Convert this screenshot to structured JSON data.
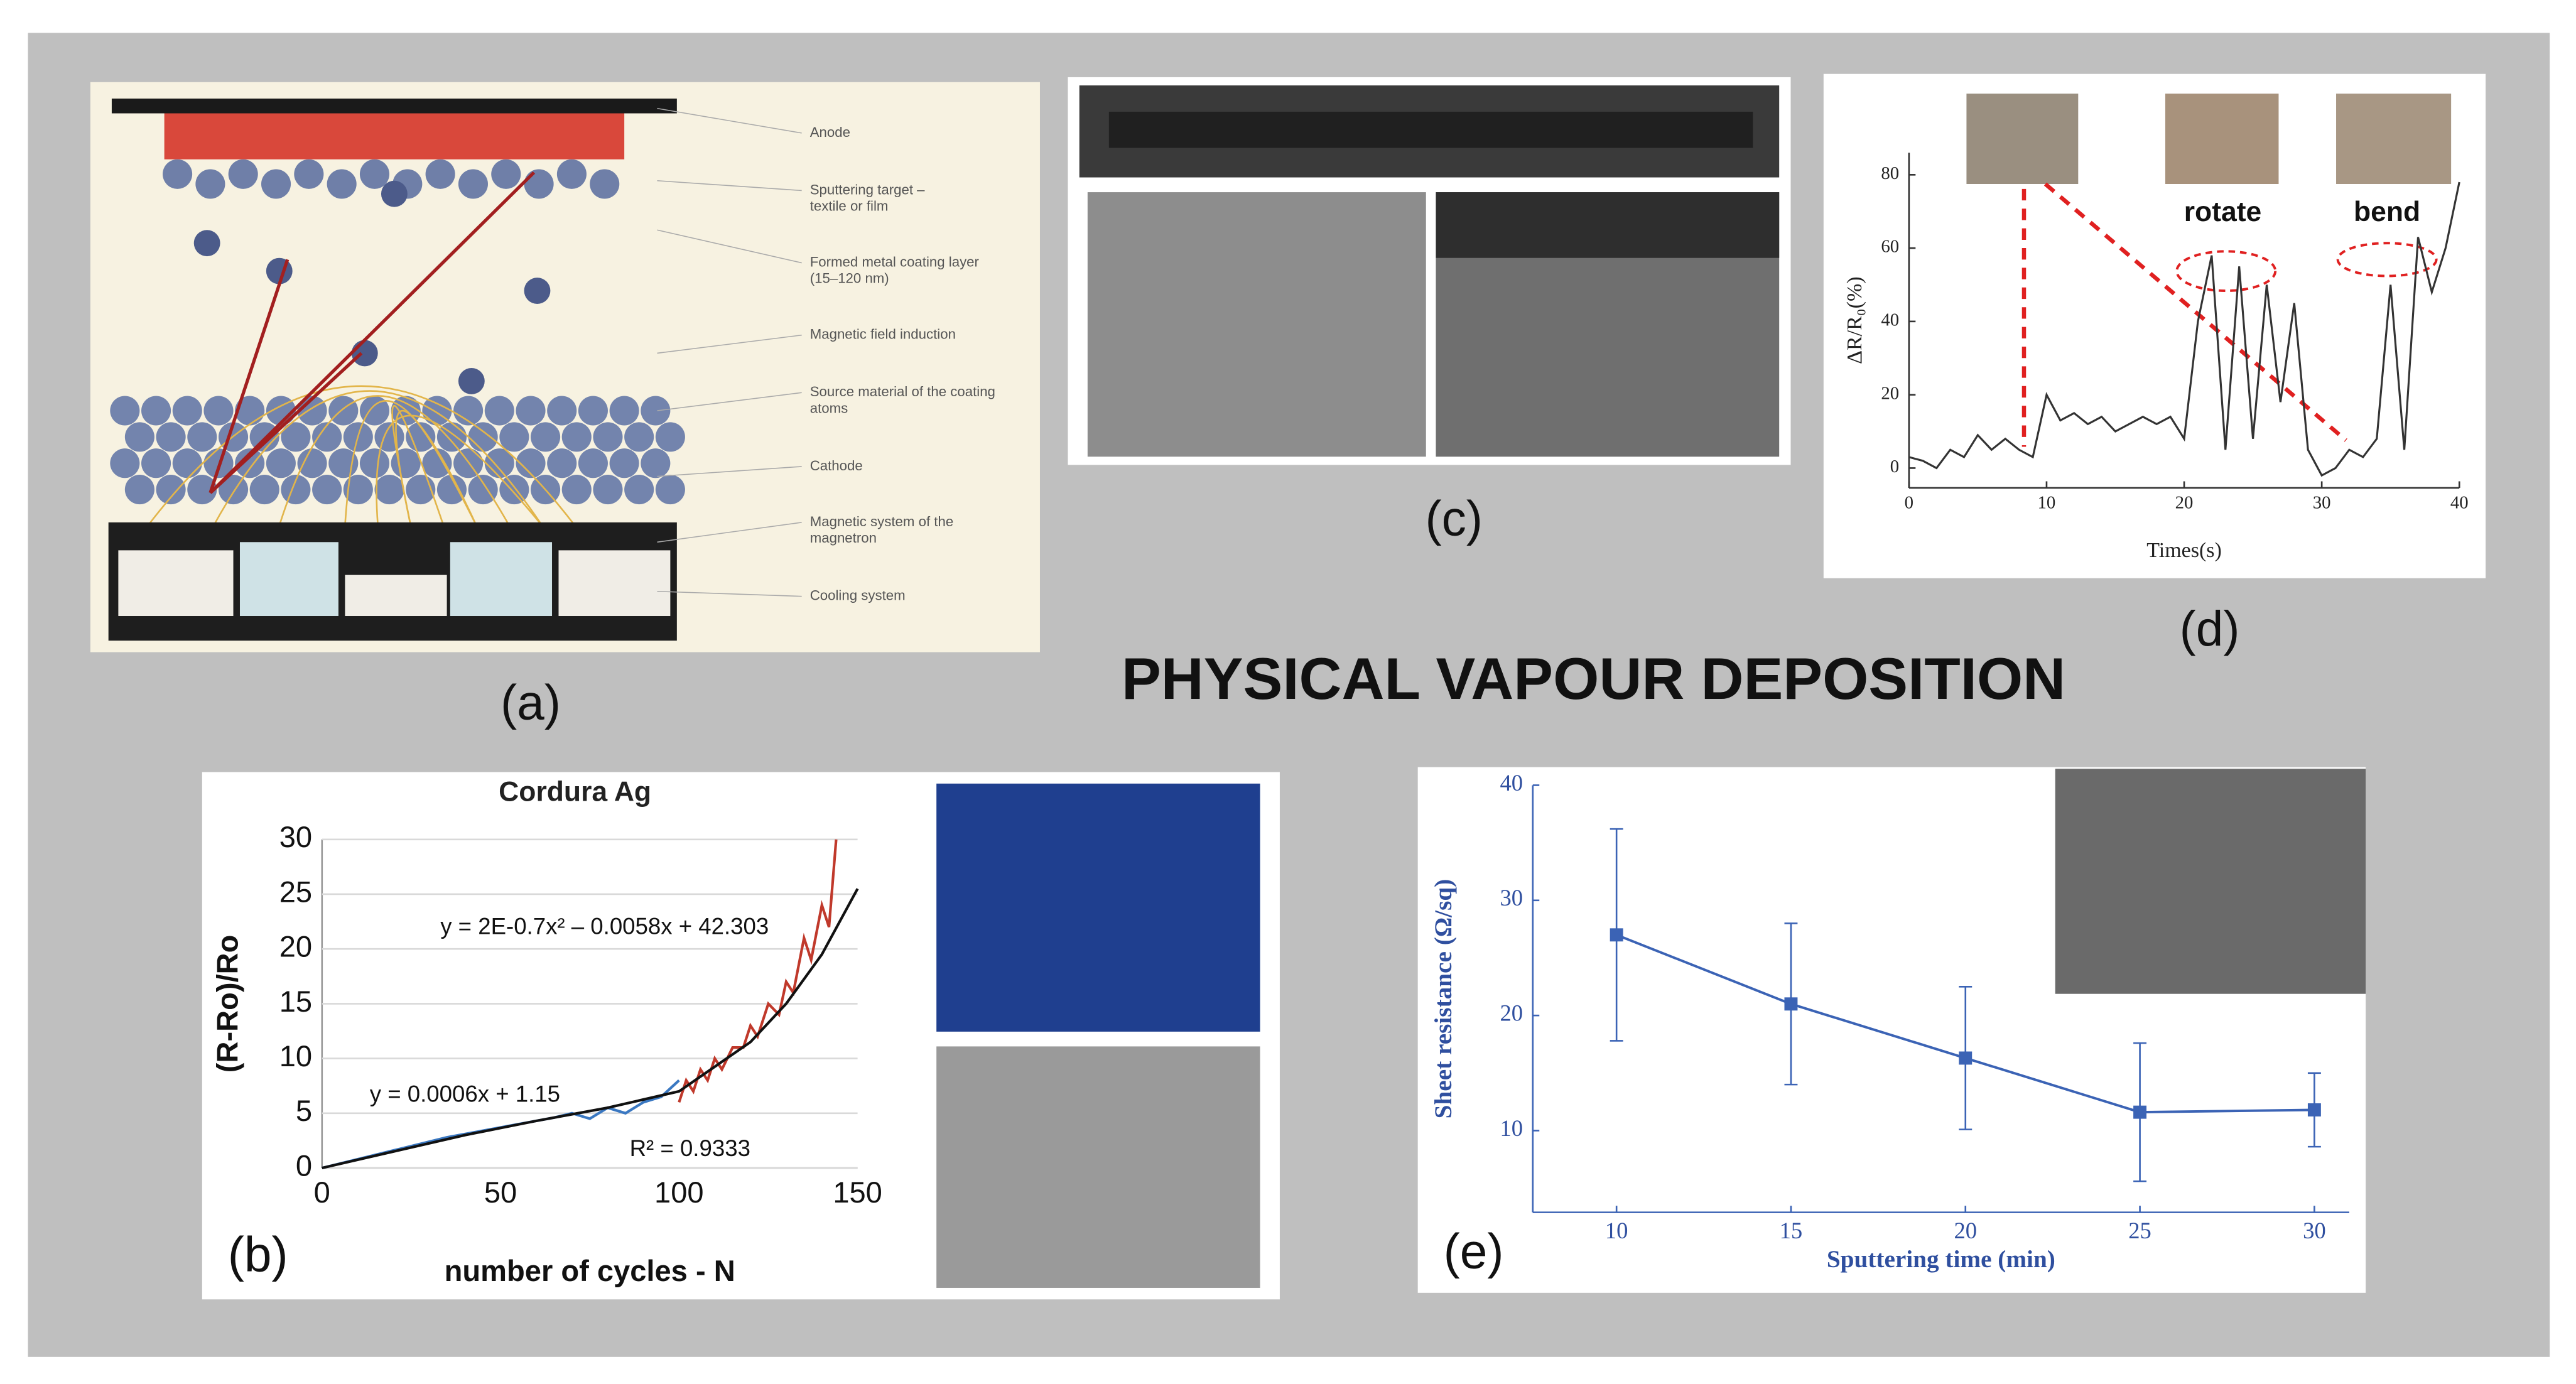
{
  "title": "PHYSICAL VAPOUR DEPOSITION",
  "panels": {
    "a": {
      "label": "(a)",
      "callouts": [
        [
          "Anode"
        ],
        [
          "Sputtering target –",
          "textile or film"
        ],
        [
          "Formed metal coating layer",
          "(15–120 nm)"
        ],
        [
          "Magnetic field induction"
        ],
        [
          "Source material of the coating",
          "atoms"
        ],
        [
          "Cathode"
        ],
        [
          "Magnetic system of the",
          "magnetron"
        ],
        [
          "Cooling system"
        ]
      ]
    },
    "c": {
      "label": "(c)"
    },
    "d": {
      "label": "(d)",
      "type": "line",
      "ylabel": "ΔR/R₀(%)",
      "xlabel": "Times(s)",
      "annotations": [
        "rotate",
        "bend"
      ],
      "xlim": [
        0,
        40
      ],
      "ylim": [
        -5.4,
        86
      ],
      "xticks": [
        0,
        10,
        20,
        30,
        40
      ],
      "yticks": [
        0,
        20,
        40,
        60,
        80
      ],
      "series": [
        {
          "color": "#333333",
          "x": [
            0,
            1,
            2,
            3,
            4,
            5,
            6,
            7,
            8,
            9,
            10,
            11,
            12,
            13,
            14,
            15,
            16,
            17,
            18,
            19,
            20,
            21,
            22,
            23,
            24,
            25,
            26,
            27,
            28,
            29,
            30,
            31,
            32,
            33,
            34,
            35,
            36,
            37,
            38,
            39,
            40
          ],
          "values": [
            3,
            2,
            0,
            5,
            3,
            9,
            5,
            8,
            5,
            3,
            20,
            13,
            15,
            12,
            14,
            10,
            12,
            14,
            12,
            14,
            8,
            40,
            58,
            5,
            55,
            8,
            50,
            18,
            45,
            5,
            -2,
            0,
            5,
            3,
            8,
            50,
            5,
            63,
            48,
            60,
            78
          ]
        }
      ]
    },
    "b": {
      "label": "(b)",
      "type": "line",
      "title": "Cordura Ag",
      "ylabel": "(R-Ro)/Ro",
      "xlabel": "number of cycles - N",
      "annotations": [
        "y = 2E-0.7x² – 0.0058x + 42.303",
        "y = 0.0006x + 1.15",
        "R² = 0.9333"
      ],
      "xlim": [
        0,
        150
      ],
      "ylim": [
        0,
        30
      ],
      "xticks": [
        0,
        50,
        100,
        150
      ],
      "yticks": [
        0,
        5,
        10,
        15,
        20,
        25,
        30
      ],
      "series": [
        {
          "color": "#3a78c2",
          "x": [
            0,
            5,
            10,
            15,
            20,
            25,
            30,
            35,
            40,
            45,
            50,
            55,
            60,
            65,
            70,
            75,
            80,
            85,
            90,
            95,
            100
          ],
          "values": [
            0,
            0.4,
            0.8,
            1.2,
            1.6,
            2,
            2.4,
            2.8,
            3.1,
            3.4,
            3.7,
            4,
            4.3,
            4.6,
            5,
            4.5,
            5.5,
            5,
            6,
            6.5,
            8
          ]
        },
        {
          "color": "#c0392b",
          "x": [
            100,
            102,
            104,
            106,
            108,
            110,
            112,
            115,
            118,
            120,
            122,
            125,
            128,
            130,
            132,
            135,
            137,
            140,
            142,
            144
          ],
          "values": [
            6,
            8,
            7,
            9,
            8,
            10,
            9,
            11,
            11,
            13,
            12,
            15,
            14,
            17,
            16,
            21,
            19,
            24,
            22,
            30
          ]
        },
        {
          "color": "#111111",
          "x": [
            0,
            20,
            40,
            60,
            80,
            100,
            120,
            130,
            140,
            150
          ],
          "values": [
            0,
            1.5,
            3,
            4.3,
            5.5,
            7,
            11.5,
            15,
            19.5,
            25.5
          ]
        }
      ]
    },
    "e": {
      "label": "(e)",
      "type": "line",
      "ylabel": "Sheet resistance (Ω/sq)",
      "xlabel": "Sputtering time (min)",
      "xlim": [
        7.6,
        31
      ],
      "ylim": [
        2.9,
        40
      ],
      "xticks": [
        10,
        15,
        20,
        25,
        30
      ],
      "yticks": [
        10,
        20,
        30,
        40
      ],
      "series": [
        {
          "color": "#3b63b5",
          "x": [
            10,
            15,
            20,
            25,
            30
          ],
          "values": [
            27,
            21,
            16.3,
            11.6,
            11.8
          ],
          "errors": [
            9.2,
            7,
            6.2,
            6,
            3.2
          ]
        }
      ]
    }
  }
}
